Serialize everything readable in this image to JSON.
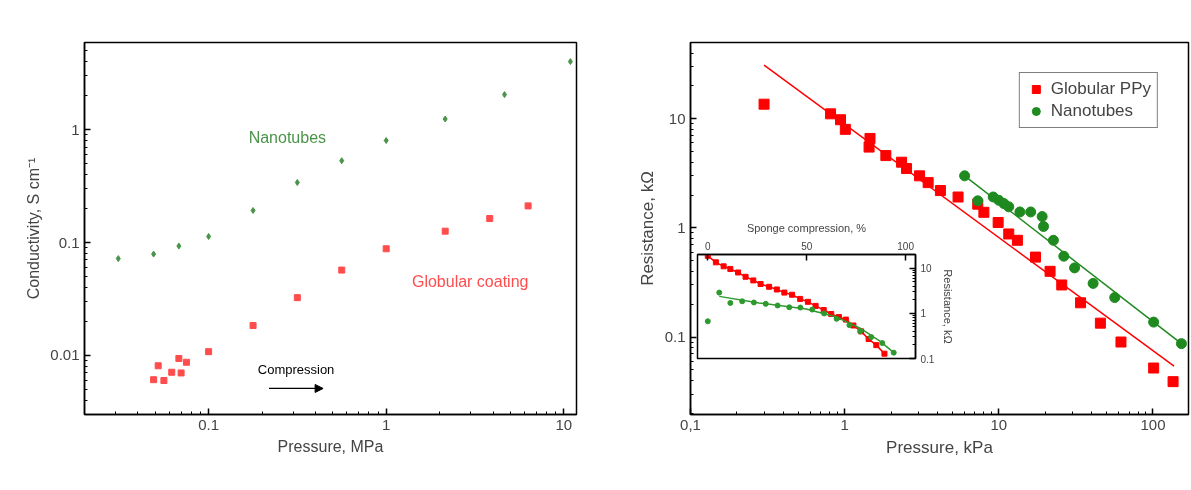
{
  "chart_data": [
    {
      "type": "scatter",
      "xlabel": "Pressure, MPa",
      "ylabel": "Conductivity, S cm⁻¹",
      "log": "xy",
      "xlim": [
        0.02,
        11.8
      ],
      "ylim": [
        0.003,
        5.9
      ],
      "xticks": [
        0.1,
        1,
        10
      ],
      "yticks": [
        0.01,
        0.1,
        1
      ],
      "series": [
        {
          "name": "Nanotubes",
          "color": "#4a944a",
          "marker": "diamond",
          "x": [
            0.031,
            0.049,
            0.068,
            0.1,
            0.178,
            0.316,
            0.562,
            1,
            2.15,
            4.64,
            10.9
          ],
          "values": [
            0.072,
            0.079,
            0.093,
            0.113,
            0.192,
            0.34,
            0.53,
            0.8,
            1.24,
            2.04,
            4.0
          ]
        },
        {
          "name": "Globular coating",
          "color": "#ff4d4d",
          "marker": "square",
          "x": [
            0.049,
            0.052,
            0.056,
            0.062,
            0.068,
            0.07,
            0.075,
            0.1,
            0.178,
            0.316,
            0.562,
            1,
            2.15,
            3.83,
            6.3
          ],
          "values": [
            0.0061,
            0.0081,
            0.006,
            0.0071,
            0.0094,
            0.007,
            0.0087,
            0.0108,
            0.0184,
            0.0325,
            0.057,
            0.088,
            0.126,
            0.163,
            0.211
          ]
        }
      ],
      "annotations": [
        "Compression"
      ]
    },
    {
      "type": "scatter",
      "xlabel": "Pressure, kPa",
      "ylabel": "Resistance, kΩ",
      "log": "xy",
      "xlim": [
        0.1,
        170
      ],
      "ylim": [
        0.0195,
        50
      ],
      "xticks": [
        {
          "value": 0.1,
          "label": "0,1"
        },
        1,
        10,
        100
      ],
      "yticks": [
        0.1,
        1,
        10
      ],
      "legend": "top right",
      "series": [
        {
          "name": "Globular PPy",
          "color": "#ff0000",
          "marker": "square",
          "x": [
            0.3,
            0.81,
            0.94,
            1.01,
            1.46,
            1.44,
            1.85,
            2.34,
            2.52,
            3.06,
            3.48,
            4.18,
            5.44,
            7.3,
            8.0,
            9.9,
            11.6,
            13.2,
            17.3,
            21.5,
            25.6,
            33.9,
            45.6,
            62,
            101,
            135
          ],
          "values": [
            13.6,
            11.1,
            9.8,
            8.0,
            6.6,
            5.5,
            4.6,
            4.0,
            3.5,
            3.0,
            2.6,
            2.2,
            1.92,
            1.65,
            1.39,
            1.12,
            0.88,
            0.77,
            0.54,
            0.4,
            0.3,
            0.206,
            0.134,
            0.09,
            0.052,
            0.039
          ]
        },
        {
          "name": "Nanotubes",
          "color": "#1f8a1f",
          "marker": "circle",
          "x": [
            6.0,
            7.3,
            9.2,
            10,
            10.8,
            11.6,
            13.7,
            16.1,
            19.1,
            19.5,
            22.6,
            26.4,
            31,
            40.9,
            56.5,
            101,
            153
          ],
          "values": [
            3.0,
            1.77,
            1.92,
            1.79,
            1.67,
            1.56,
            1.4,
            1.4,
            1.27,
            1.03,
            0.77,
            0.55,
            0.43,
            0.31,
            0.23,
            0.137,
            0.087
          ]
        },
        {
          "type": "line",
          "color": "#ff0000",
          "x": [
            0.3,
            137
          ],
          "values": [
            31,
            0.054
          ]
        },
        {
          "type": "line",
          "color": "#1f8a1f",
          "x": [
            6.0,
            153
          ],
          "values": [
            3.0,
            0.087
          ]
        }
      ]
    },
    {
      "type": "line",
      "xlabel": "Sponge compression, %",
      "ylabel": "Resistance, kΩ",
      "log": "y",
      "xlim": [
        -5.2,
        105
      ],
      "ylim": [
        0.1,
        20.3
      ],
      "xticks": [
        0,
        50,
        100
      ],
      "yticks": [
        0.1,
        1,
        10
      ],
      "series": [
        {
          "color": "#ff0000",
          "marker": "square",
          "x": [
            0,
            4.1,
            8.0,
            11.4,
            15.3,
            19.1,
            23,
            26.7,
            31,
            34.9,
            38.7,
            42.6,
            46.7,
            50.6,
            54.5,
            58.6,
            62.4,
            66.3,
            69.8,
            73.6,
            77.5,
            81.3,
            85.2,
            89.3
          ],
          "values": [
            19,
            13.6,
            11.1,
            9.7,
            8.1,
            6.5,
            5.4,
            4.5,
            3.9,
            3.4,
            2.9,
            2.6,
            2.1,
            1.81,
            1.47,
            1.19,
            0.97,
            0.83,
            0.73,
            0.54,
            0.4,
            0.27,
            0.198,
            0.128
          ]
        },
        {
          "type": "scatter",
          "color": "#2e9a2e",
          "marker": "circle",
          "x": [
            0,
            5.8,
            11.4,
            17.4,
            23.3,
            29.3,
            35.3,
            41.2,
            46.8,
            52.8,
            58.8,
            65.1,
            71.6,
            77,
            82.6,
            88.2,
            94
          ],
          "values": [
            0.67,
            2.9,
            1.71,
            1.86,
            1.75,
            1.63,
            1.5,
            1.37,
            1.35,
            1.22,
            1.0,
            0.76,
            0.55,
            0.4,
            0.3,
            0.22,
            0.135
          ]
        },
        {
          "type": "line",
          "color": "#2e9a2e",
          "x": [
            5.8,
            25.9,
            49.7,
            65.1,
            77,
            87.2,
            94
          ],
          "values": [
            2.39,
            1.71,
            1.26,
            0.83,
            0.47,
            0.24,
            0.135
          ]
        }
      ]
    }
  ]
}
